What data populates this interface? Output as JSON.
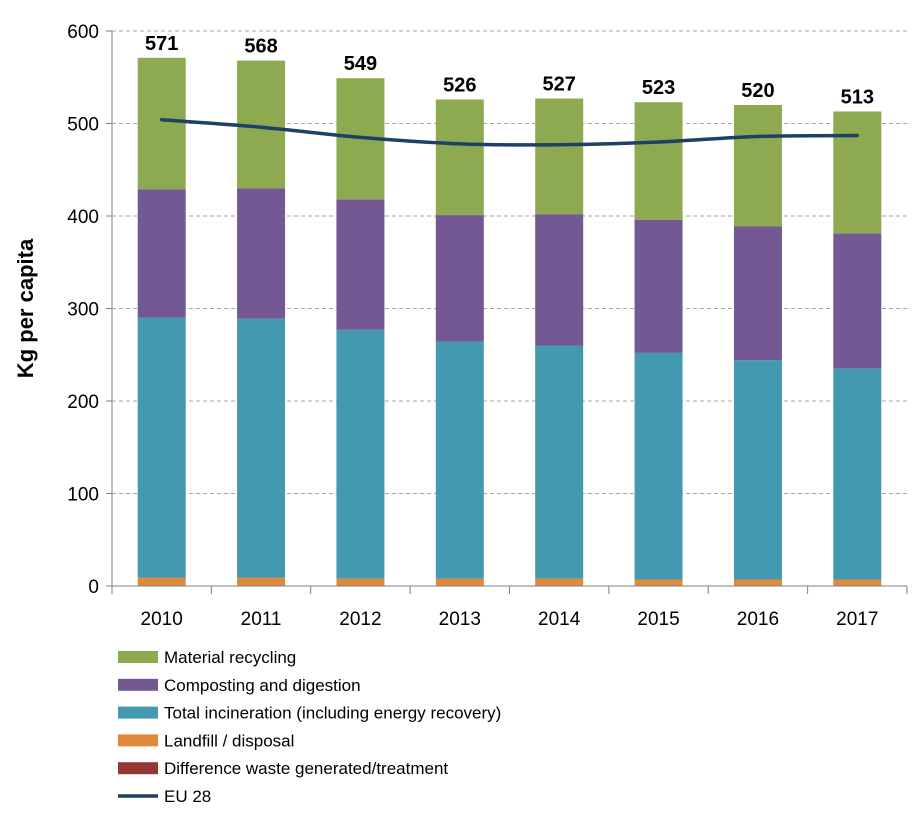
{
  "chart_data": {
    "type": "bar",
    "stacked": true,
    "title": "",
    "xlabel": "",
    "ylabel": "Kg per capita",
    "ylim": [
      0,
      600
    ],
    "yticks": [
      0,
      100,
      200,
      300,
      400,
      500,
      600
    ],
    "grid": "horizontal dashed",
    "legend_position": "bottom-left",
    "categories": [
      "2010",
      "2011",
      "2012",
      "2013",
      "2014",
      "2015",
      "2016",
      "2017"
    ],
    "totals": [
      571,
      568,
      549,
      526,
      527,
      523,
      520,
      513
    ],
    "series": [
      {
        "name": "Difference waste generated/treatment",
        "color": "#953735",
        "kind": "bar",
        "values": [
          0,
          0,
          0,
          0,
          0,
          0,
          0,
          0
        ]
      },
      {
        "name": "Landfill / disposal",
        "color": "#E0893B",
        "kind": "bar",
        "values": [
          9,
          9,
          8,
          8,
          8,
          7,
          7,
          7
        ]
      },
      {
        "name": "Total incineration (including energy recovery)",
        "color": "#4299B0",
        "kind": "bar",
        "values": [
          281,
          280,
          269,
          256,
          252,
          245,
          237,
          228
        ]
      },
      {
        "name": "Composting and digestion",
        "color": "#735893",
        "kind": "bar",
        "values": [
          139,
          141,
          141,
          137,
          142,
          144,
          145,
          146
        ]
      },
      {
        "name": "Material recycling",
        "color": "#8DAA51",
        "kind": "bar",
        "values": [
          142,
          138,
          131,
          125,
          125,
          127,
          131,
          132
        ]
      },
      {
        "name": "EU 28",
        "color": "#1F3F68",
        "kind": "line",
        "values": [
          504,
          496,
          485,
          478,
          477,
          480,
          486,
          487
        ]
      }
    ],
    "legend_order": [
      "Material recycling",
      "Composting and digestion",
      "Total incineration (including energy recovery)",
      "Landfill / disposal",
      "Difference waste generated/treatment",
      "EU 28"
    ]
  }
}
